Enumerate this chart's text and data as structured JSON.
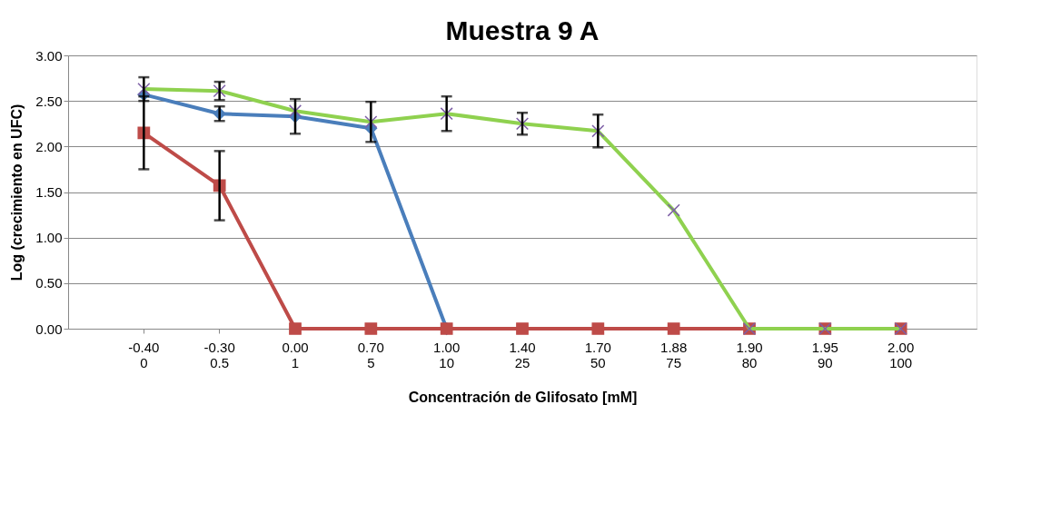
{
  "chart_data": {
    "type": "line",
    "title": "Muestra 9 A",
    "xlabel": "Concentración de Glifosato [mM]",
    "ylabel": "Log  (crecimiento en UFC)",
    "categories": [
      "-0.40\n0",
      "-0.30\n0.5",
      "0.00\n1",
      "0.70\n5",
      "1.00\n10",
      "1.40\n25",
      "1.70\n50",
      "1.88\n75",
      "1.90\n80",
      "1.95\n90",
      "2.00\n100"
    ],
    "ylim": [
      0,
      3
    ],
    "yticks": [
      {
        "value": 0,
        "label": "0.00"
      },
      {
        "value": 0.5,
        "label": "0.50"
      },
      {
        "value": 1,
        "label": "1.00"
      },
      {
        "value": 1.5,
        "label": "1.50"
      },
      {
        "value": 2,
        "label": "2.00"
      },
      {
        "value": 2.5,
        "label": "2.50"
      },
      {
        "value": 3,
        "label": "3.00"
      }
    ],
    "grid": "y",
    "line_style": "solid",
    "series": [
      {
        "color": "#4a7ebb",
        "marker": "diamond",
        "values": [
          2.57,
          2.36,
          2.33,
          2.2,
          0,
          null,
          null,
          null,
          null,
          null,
          null
        ],
        "errors": [
          null,
          0.08,
          0.19,
          null,
          null,
          null,
          null,
          null,
          null,
          null,
          null
        ]
      },
      {
        "color": "#be4b48",
        "marker": "square",
        "values": [
          2.15,
          1.57,
          0,
          0,
          0,
          0,
          0,
          0,
          0,
          0,
          0
        ],
        "errors": [
          0.4,
          0.38,
          null,
          null,
          null,
          null,
          null,
          null,
          null,
          null,
          null
        ]
      },
      {
        "color": "#8fd14f",
        "marker": "cross",
        "colors": [
          "#7d5fa6",
          "#7d5fa6",
          "#7d5fa6",
          "#7d5fa6",
          "#7d5fa6",
          "#7d5fa6",
          "#7d5fa6",
          "#7d5fa6",
          "#7d5fa6",
          "#7d5fa6",
          "#7d5fa6"
        ],
        "values": [
          2.63,
          2.61,
          2.39,
          2.27,
          2.36,
          2.25,
          2.17,
          1.3,
          0,
          0,
          0
        ],
        "errors": [
          0.13,
          0.1,
          null,
          0.22,
          0.19,
          0.12,
          0.18,
          null,
          null,
          null,
          null
        ]
      }
    ]
  }
}
